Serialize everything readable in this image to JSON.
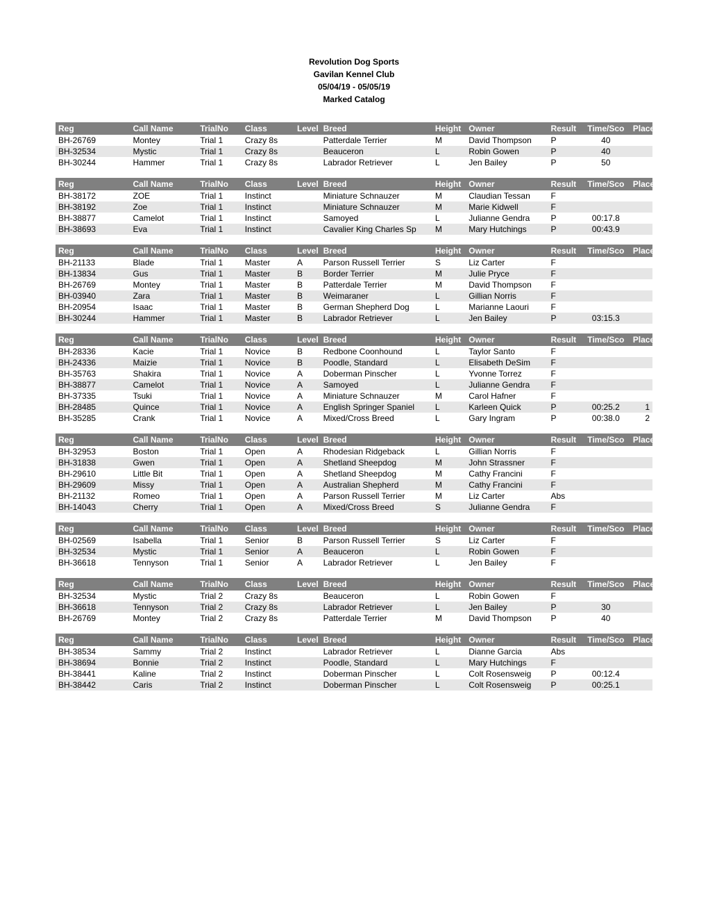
{
  "header": {
    "line1": "Revolution Dog Sports",
    "line2": "Gavilan Kennel Club",
    "line3": "05/04/19 - 05/05/19",
    "line4": "Marked Catalog"
  },
  "columns": {
    "reg": "Reg",
    "call": "Call Name",
    "trial": "TrialNo",
    "class": "Class",
    "level": "Level",
    "breed": "Breed",
    "height": "Height",
    "owner": "Owner",
    "result": "Result",
    "time": "Time/Sco",
    "place": "Place"
  },
  "styles": {
    "header_bg": "#808080",
    "header_fg": "#ffffff",
    "row_even_bg": "#ffffff",
    "row_odd_bg": "#e6e6e6",
    "font_size": 12,
    "title_bold": true
  },
  "sections": [
    {
      "rows": [
        {
          "reg": "BH-26769",
          "call": "Montey",
          "trial": "Trial 1",
          "class": "Crazy 8s",
          "level": "",
          "breed": "Patterdale Terrier",
          "height": "M",
          "owner": "David Thompson",
          "result": "P",
          "time": "40",
          "place": ""
        },
        {
          "reg": "BH-32534",
          "call": "Mystic",
          "trial": "Trial 1",
          "class": "Crazy 8s",
          "level": "",
          "breed": "Beauceron",
          "height": "L",
          "owner": "Robin Gowen",
          "result": "P",
          "time": "40",
          "place": ""
        },
        {
          "reg": "BH-30244",
          "call": "Hammer",
          "trial": "Trial 1",
          "class": "Crazy 8s",
          "level": "",
          "breed": "Labrador Retriever",
          "height": "L",
          "owner": "Jen Bailey",
          "result": "P",
          "time": "50",
          "place": ""
        }
      ]
    },
    {
      "rows": [
        {
          "reg": "BH-38172",
          "call": "ZOE",
          "trial": "Trial 1",
          "class": "Instinct",
          "level": "",
          "breed": "Miniature Schnauzer",
          "height": "M",
          "owner": "Claudian Tessan",
          "result": "F",
          "time": "",
          "place": ""
        },
        {
          "reg": "BH-38192",
          "call": "Zoe",
          "trial": "Trial 1",
          "class": "Instinct",
          "level": "",
          "breed": "Miniature Schnauzer",
          "height": "M",
          "owner": "Marie Kidwell",
          "result": "F",
          "time": "",
          "place": ""
        },
        {
          "reg": "BH-38877",
          "call": "Camelot",
          "trial": "Trial 1",
          "class": "Instinct",
          "level": "",
          "breed": "Samoyed",
          "height": "L",
          "owner": "Julianne Gendra",
          "result": "P",
          "time": "00:17.8",
          "place": ""
        },
        {
          "reg": "BH-38693",
          "call": "Eva",
          "trial": "Trial 1",
          "class": "Instinct",
          "level": "",
          "breed": "Cavalier King Charles Sp",
          "height": "M",
          "owner": "Mary Hutchings",
          "result": "P",
          "time": "00:43.9",
          "place": ""
        }
      ]
    },
    {
      "rows": [
        {
          "reg": "BH-21133",
          "call": "Blade",
          "trial": "Trial 1",
          "class": "Master",
          "level": "A",
          "breed": "Parson Russell Terrier",
          "height": "S",
          "owner": "Liz Carter",
          "result": "F",
          "time": "",
          "place": ""
        },
        {
          "reg": "BH-13834",
          "call": "Gus",
          "trial": "Trial 1",
          "class": "Master",
          "level": "B",
          "breed": "Border Terrier",
          "height": "M",
          "owner": "Julie Pryce",
          "result": "F",
          "time": "",
          "place": ""
        },
        {
          "reg": "BH-26769",
          "call": "Montey",
          "trial": "Trial 1",
          "class": "Master",
          "level": "B",
          "breed": "Patterdale Terrier",
          "height": "M",
          "owner": "David Thompson",
          "result": "F",
          "time": "",
          "place": ""
        },
        {
          "reg": "BH-03940",
          "call": "Zara",
          "trial": "Trial 1",
          "class": "Master",
          "level": "B",
          "breed": "Weimaraner",
          "height": "L",
          "owner": "Gillian Norris",
          "result": "F",
          "time": "",
          "place": ""
        },
        {
          "reg": "BH-20954",
          "call": "Isaac",
          "trial": "Trial 1",
          "class": "Master",
          "level": "B",
          "breed": "German Shepherd Dog",
          "height": "L",
          "owner": "Marianne Laouri",
          "result": "F",
          "time": "",
          "place": ""
        },
        {
          "reg": "BH-30244",
          "call": "Hammer",
          "trial": "Trial 1",
          "class": "Master",
          "level": "B",
          "breed": "Labrador Retriever",
          "height": "L",
          "owner": "Jen Bailey",
          "result": "P",
          "time": "03:15.3",
          "place": ""
        }
      ]
    },
    {
      "rows": [
        {
          "reg": "BH-28336",
          "call": "Kacie",
          "trial": "Trial 1",
          "class": "Novice",
          "level": "B",
          "breed": "Redbone Coonhound",
          "height": "L",
          "owner": "Taylor Santo",
          "result": "F",
          "time": "",
          "place": ""
        },
        {
          "reg": "BH-24336",
          "call": "Maizie",
          "trial": "Trial 1",
          "class": "Novice",
          "level": "B",
          "breed": "Poodle, Standard",
          "height": "L",
          "owner": "Elisabeth DeSim",
          "result": "F",
          "time": "",
          "place": ""
        },
        {
          "reg": "BH-35763",
          "call": "Shakira",
          "trial": "Trial 1",
          "class": "Novice",
          "level": "A",
          "breed": "Doberman Pinscher",
          "height": "L",
          "owner": "Yvonne Torrez",
          "result": "F",
          "time": "",
          "place": ""
        },
        {
          "reg": "BH-38877",
          "call": "Camelot",
          "trial": "Trial 1",
          "class": "Novice",
          "level": "A",
          "breed": "Samoyed",
          "height": "L",
          "owner": "Julianne Gendra",
          "result": "F",
          "time": "",
          "place": ""
        },
        {
          "reg": "BH-37335",
          "call": "Tsuki",
          "trial": "Trial 1",
          "class": "Novice",
          "level": "A",
          "breed": "Miniature Schnauzer",
          "height": "M",
          "owner": "Carol Hafner",
          "result": "F",
          "time": "",
          "place": ""
        },
        {
          "reg": "BH-28485",
          "call": "Quince",
          "trial": "Trial 1",
          "class": "Novice",
          "level": "A",
          "breed": "English Springer Spaniel",
          "height": "L",
          "owner": "Karleen Quick",
          "result": "P",
          "time": "00:25.2",
          "place": "1"
        },
        {
          "reg": "BH-35285",
          "call": "Crank",
          "trial": "Trial 1",
          "class": "Novice",
          "level": "A",
          "breed": "Mixed/Cross Breed",
          "height": "L",
          "owner": "Gary Ingram",
          "result": "P",
          "time": "00:38.0",
          "place": "2"
        }
      ]
    },
    {
      "rows": [
        {
          "reg": "BH-32953",
          "call": "Boston",
          "trial": "Trial 1",
          "class": "Open",
          "level": "A",
          "breed": "Rhodesian Ridgeback",
          "height": "L",
          "owner": "Gillian Norris",
          "result": "F",
          "time": "",
          "place": ""
        },
        {
          "reg": "BH-31838",
          "call": "Gwen",
          "trial": "Trial 1",
          "class": "Open",
          "level": "A",
          "breed": "Shetland Sheepdog",
          "height": "M",
          "owner": "John Strassner",
          "result": "F",
          "time": "",
          "place": ""
        },
        {
          "reg": "BH-29610",
          "call": "Little Bit",
          "trial": "Trial 1",
          "class": "Open",
          "level": "A",
          "breed": "Shetland Sheepdog",
          "height": "M",
          "owner": "Cathy Francini",
          "result": "F",
          "time": "",
          "place": ""
        },
        {
          "reg": "BH-29609",
          "call": "Missy",
          "trial": "Trial 1",
          "class": "Open",
          "level": "A",
          "breed": "Australian Shepherd",
          "height": "M",
          "owner": "Cathy Francini",
          "result": "F",
          "time": "",
          "place": ""
        },
        {
          "reg": "BH-21132",
          "call": "Romeo",
          "trial": "Trial 1",
          "class": "Open",
          "level": "A",
          "breed": "Parson Russell Terrier",
          "height": "M",
          "owner": "Liz Carter",
          "result": "Abs",
          "time": "",
          "place": ""
        },
        {
          "reg": "BH-14043",
          "call": "Cherry",
          "trial": "Trial 1",
          "class": "Open",
          "level": "A",
          "breed": "Mixed/Cross Breed",
          "height": "S",
          "owner": "Julianne Gendra",
          "result": "F",
          "time": "",
          "place": ""
        }
      ]
    },
    {
      "rows": [
        {
          "reg": "BH-02569",
          "call": "Isabella",
          "trial": "Trial 1",
          "class": "Senior",
          "level": "B",
          "breed": "Parson Russell Terrier",
          "height": "S",
          "owner": "Liz Carter",
          "result": "F",
          "time": "",
          "place": ""
        },
        {
          "reg": "BH-32534",
          "call": "Mystic",
          "trial": "Trial 1",
          "class": "Senior",
          "level": "A",
          "breed": "Beauceron",
          "height": "L",
          "owner": "Robin Gowen",
          "result": "F",
          "time": "",
          "place": ""
        },
        {
          "reg": "BH-36618",
          "call": "Tennyson",
          "trial": "Trial 1",
          "class": "Senior",
          "level": "A",
          "breed": "Labrador Retriever",
          "height": "L",
          "owner": "Jen Bailey",
          "result": "F",
          "time": "",
          "place": ""
        }
      ]
    },
    {
      "rows": [
        {
          "reg": "BH-32534",
          "call": "Mystic",
          "trial": "Trial 2",
          "class": "Crazy 8s",
          "level": "",
          "breed": "Beauceron",
          "height": "L",
          "owner": "Robin Gowen",
          "result": "F",
          "time": "",
          "place": ""
        },
        {
          "reg": "BH-36618",
          "call": "Tennyson",
          "trial": "Trial 2",
          "class": "Crazy 8s",
          "level": "",
          "breed": "Labrador Retriever",
          "height": "L",
          "owner": "Jen Bailey",
          "result": "P",
          "time": "30",
          "place": ""
        },
        {
          "reg": "BH-26769",
          "call": "Montey",
          "trial": "Trial 2",
          "class": "Crazy 8s",
          "level": "",
          "breed": "Patterdale Terrier",
          "height": "M",
          "owner": "David Thompson",
          "result": "P",
          "time": "40",
          "place": ""
        }
      ]
    },
    {
      "rows": [
        {
          "reg": "BH-38534",
          "call": "Sammy",
          "trial": "Trial 2",
          "class": "Instinct",
          "level": "",
          "breed": "Labrador Retriever",
          "height": "L",
          "owner": "Dianne Garcia",
          "result": "Abs",
          "time": "",
          "place": ""
        },
        {
          "reg": "BH-38694",
          "call": "Bonnie",
          "trial": "Trial 2",
          "class": "Instinct",
          "level": "",
          "breed": "Poodle, Standard",
          "height": "L",
          "owner": "Mary Hutchings",
          "result": "F",
          "time": "",
          "place": ""
        },
        {
          "reg": "BH-38441",
          "call": "Kaline",
          "trial": "Trial 2",
          "class": "Instinct",
          "level": "",
          "breed": "Doberman Pinscher",
          "height": "L",
          "owner": "Colt Rosensweig",
          "result": "P",
          "time": "00:12.4",
          "place": ""
        },
        {
          "reg": "BH-38442",
          "call": "Caris",
          "trial": "Trial 2",
          "class": "Instinct",
          "level": "",
          "breed": "Doberman Pinscher",
          "height": "L",
          "owner": "Colt Rosensweig",
          "result": "P",
          "time": "00:25.1",
          "place": ""
        }
      ]
    }
  ]
}
